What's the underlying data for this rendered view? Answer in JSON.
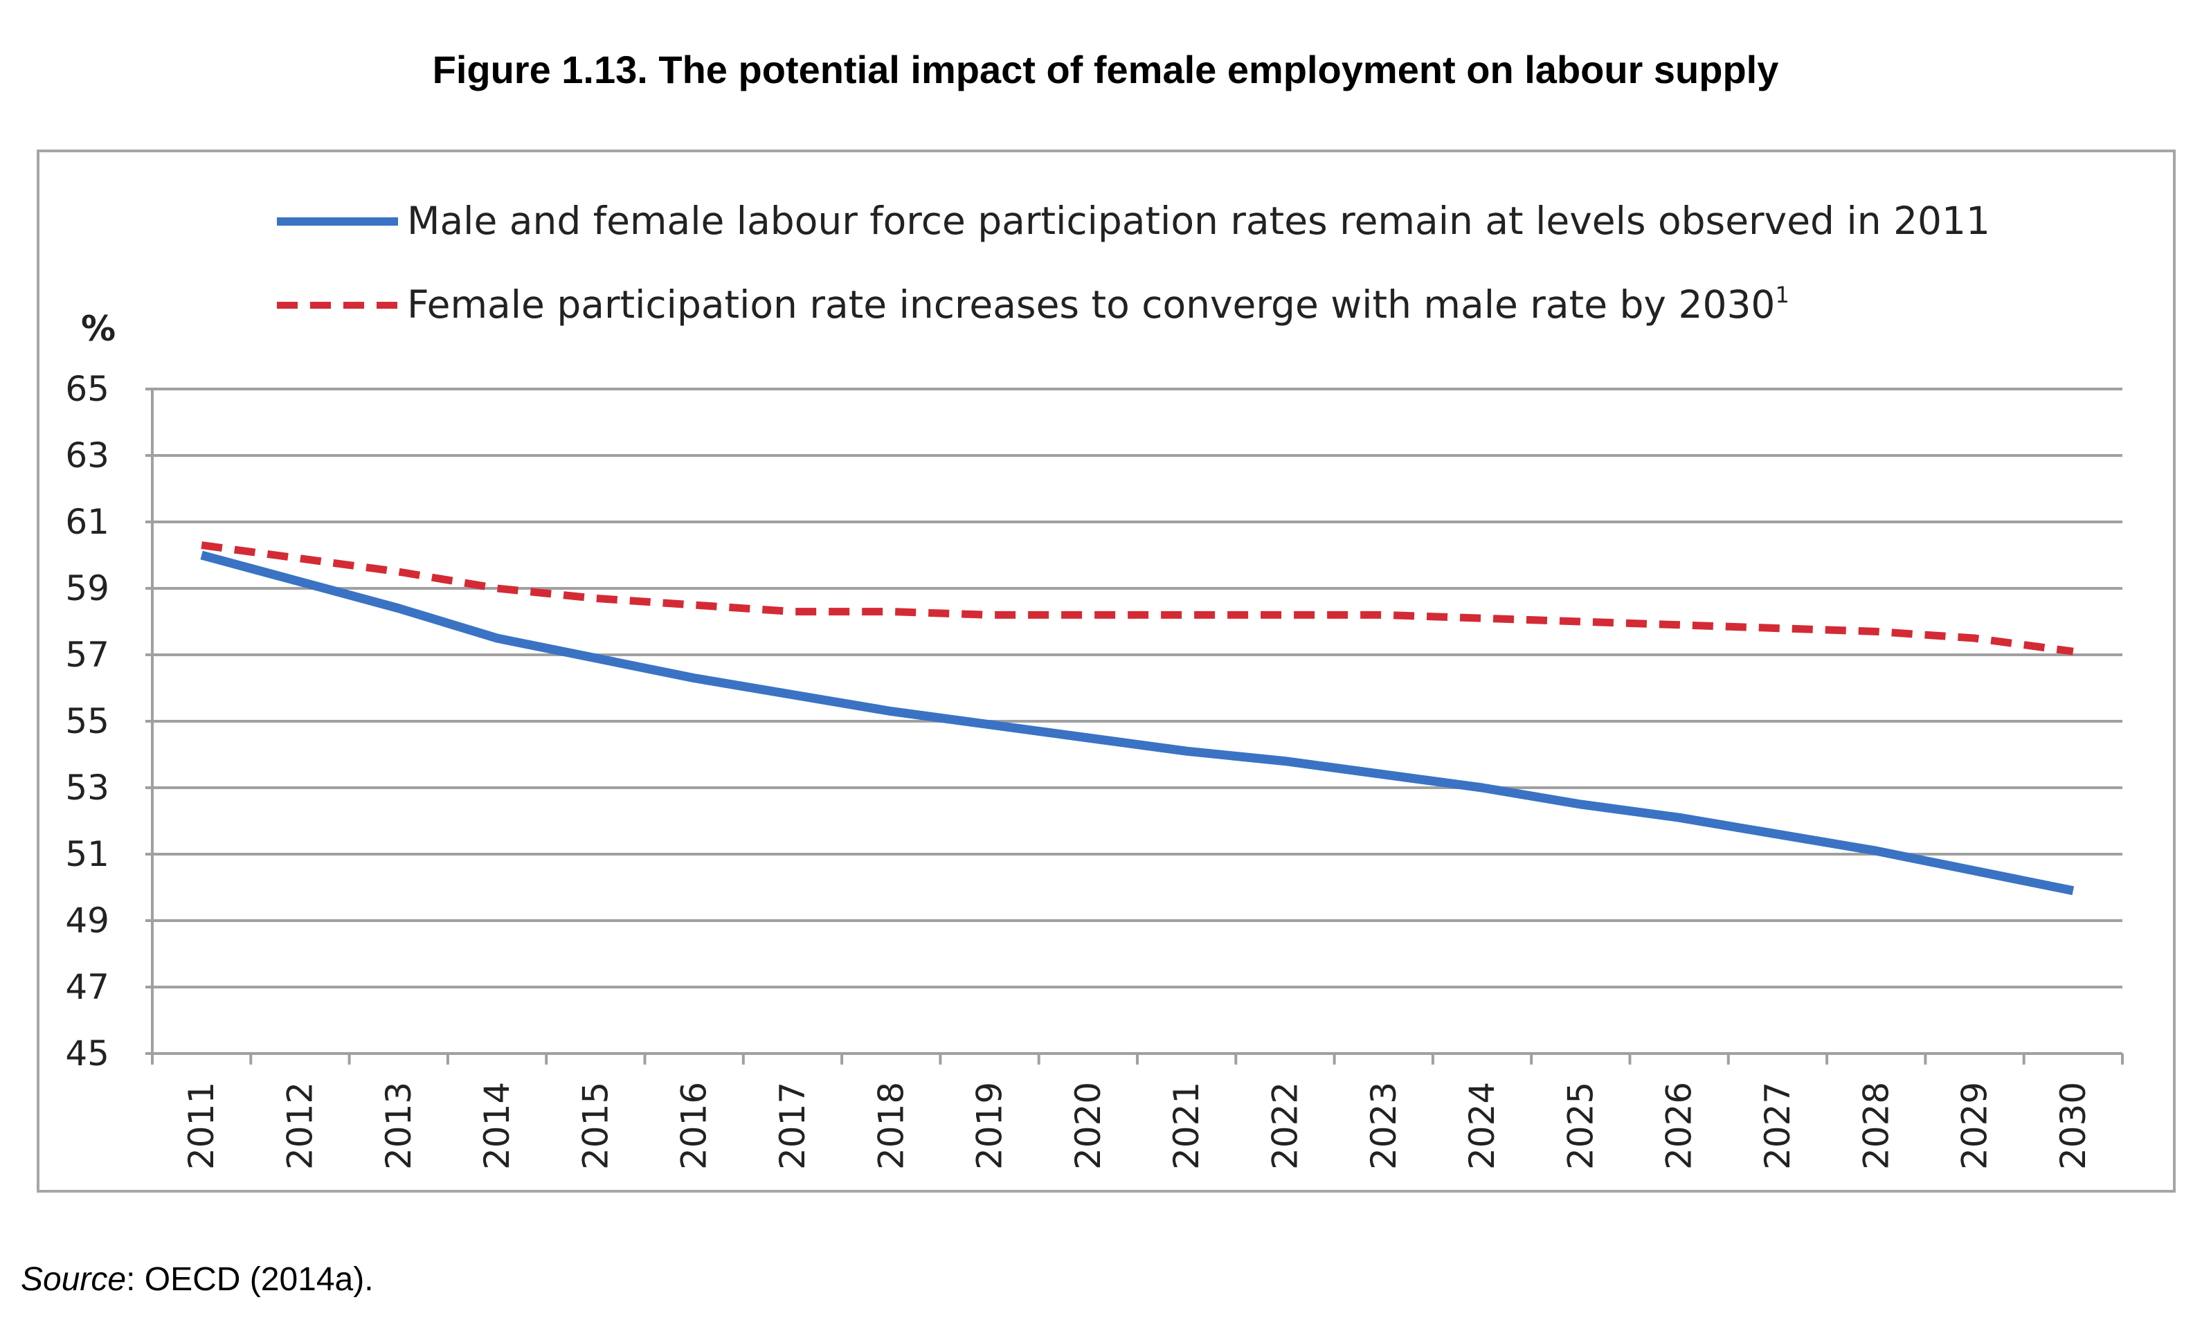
{
  "chart_data": {
    "type": "line",
    "title": "Figure 1.13. The potential impact of female employment on labour supply",
    "ylabel": "%",
    "xlabel": "",
    "ylim": [
      45,
      65
    ],
    "yticks": [
      "65",
      "63",
      "61",
      "59",
      "57",
      "55",
      "53",
      "51",
      "49",
      "47",
      "45"
    ],
    "grid": true,
    "legend_position": "top",
    "x": [
      "2011",
      "2012",
      "2013",
      "2014",
      "2015",
      "2016",
      "2017",
      "2018",
      "2019",
      "2020",
      "2021",
      "2022",
      "2023",
      "2024",
      "2025",
      "2026",
      "2027",
      "2028",
      "2029",
      "2030"
    ],
    "series": [
      {
        "name": "Male and female labour force participation rates remain at levels observed in 2011",
        "style": "solid",
        "color": "#3a73c4",
        "values": [
          60.0,
          59.2,
          58.4,
          57.5,
          56.9,
          56.3,
          55.8,
          55.3,
          54.9,
          54.5,
          54.1,
          53.8,
          53.4,
          53.0,
          52.5,
          52.1,
          51.6,
          51.1,
          50.5,
          49.9
        ]
      },
      {
        "name": "Female participation rate increases to converge with male rate by 2030",
        "footnote": "1",
        "style": "dashed",
        "color": "#d42a35",
        "values": [
          60.3,
          59.9,
          59.5,
          59.0,
          58.7,
          58.5,
          58.3,
          58.3,
          58.2,
          58.2,
          58.2,
          58.2,
          58.2,
          58.1,
          58.0,
          57.9,
          57.8,
          57.7,
          57.5,
          57.1
        ]
      }
    ]
  },
  "source": {
    "label": "Source",
    "text": ": OECD (2014a)."
  }
}
